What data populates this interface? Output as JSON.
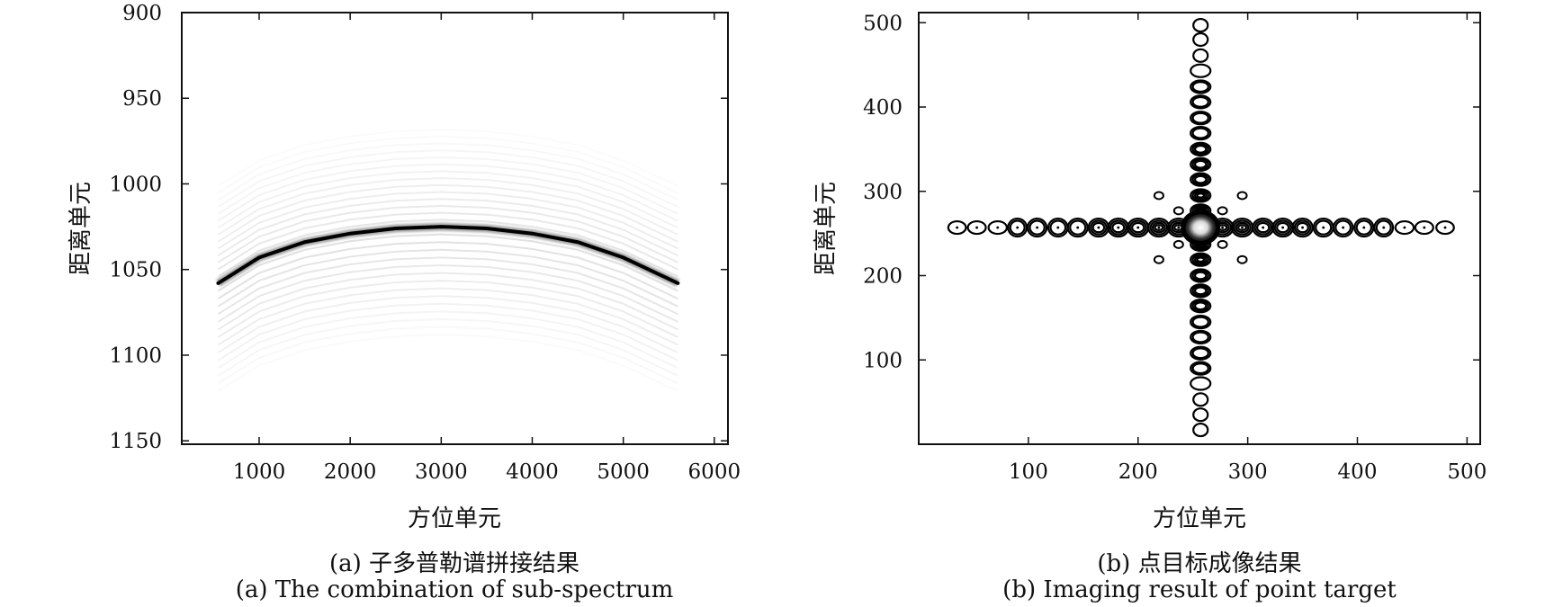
{
  "chart_data": [
    {
      "type": "heatmap",
      "panel": "a",
      "xlabel": "方位单元",
      "ylabel": "距离单元",
      "xlim": [
        150,
        6150
      ],
      "ylim": [
        900,
        1152
      ],
      "y_inverted": true,
      "xticks": [
        1000,
        2000,
        3000,
        4000,
        5000,
        6000
      ],
      "yticks": [
        900,
        950,
        1000,
        1050,
        1100,
        1150
      ],
      "colormap": "gray-reversed",
      "curve": {
        "x": [
          550,
          1000,
          1500,
          2000,
          2500,
          3000,
          3500,
          4000,
          4500,
          5000,
          5600
        ],
        "y": [
          1058,
          1043,
          1034,
          1029,
          1026,
          1025,
          1026,
          1029,
          1034,
          1043,
          1058
        ]
      },
      "caption_cn": "(a) 子多普勒谱拼接结果",
      "caption_en": "(a) The combination of sub-spectrum"
    },
    {
      "type": "scatter",
      "panel": "b",
      "xlabel": "方位单元",
      "ylabel": "距离单元",
      "xlim": [
        0,
        512
      ],
      "ylim": [
        0,
        512
      ],
      "xticks": [
        100,
        200,
        300,
        400,
        500
      ],
      "yticks": [
        100,
        200,
        300,
        400,
        500
      ],
      "center": [
        257,
        257
      ],
      "horizontal_lobes_x": [
        35,
        53,
        72,
        90,
        108,
        127,
        145,
        164,
        182,
        200,
        219,
        237,
        277,
        295,
        314,
        332,
        350,
        369,
        387,
        406,
        424,
        443,
        461,
        480
      ],
      "vertical_lobes_y": [
        17,
        35,
        53,
        72,
        90,
        108,
        127,
        145,
        164,
        182,
        200,
        219,
        237,
        277,
        295,
        314,
        332,
        350,
        369,
        387,
        406,
        424,
        443,
        461,
        480,
        497
      ],
      "off_axis_lobes": [
        [
          237,
          237
        ],
        [
          277,
          237
        ],
        [
          237,
          277
        ],
        [
          277,
          277
        ],
        [
          219,
          219
        ],
        [
          295,
          219
        ],
        [
          219,
          295
        ],
        [
          295,
          295
        ]
      ],
      "caption_cn": "(b) 点目标成像结果",
      "caption_en": "(b) Imaging result of point target"
    }
  ]
}
